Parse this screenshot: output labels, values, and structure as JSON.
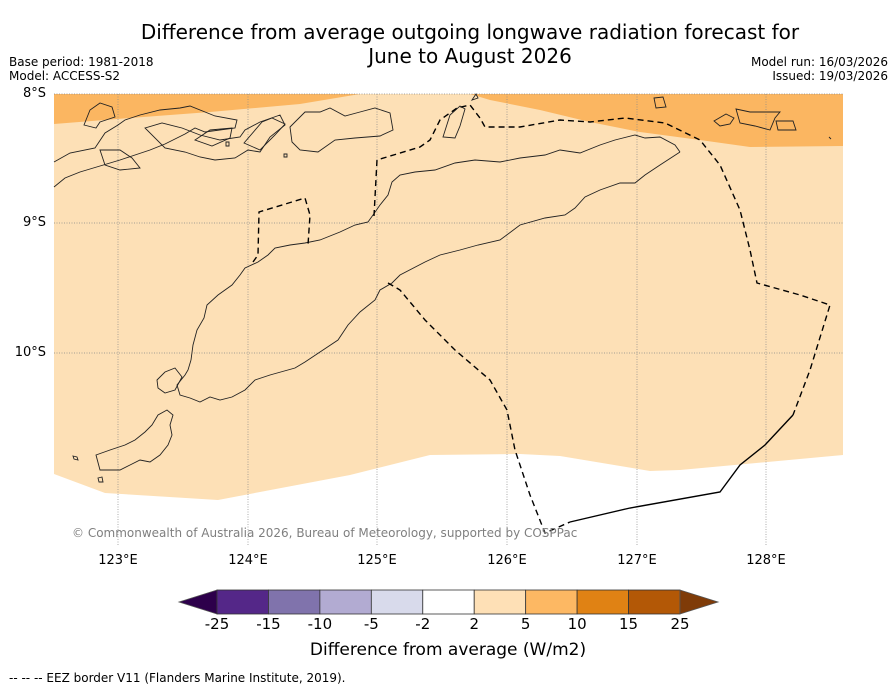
{
  "title_line1": "Difference from average outgoing longwave radiation forecast for",
  "title_line2": "June to August 2026",
  "meta": {
    "base_period": "Base period: 1981-2018",
    "model": "Model: ACCESS-S2",
    "model_run": "Model run: 16/03/2026",
    "issued": "Issued: 19/03/2026"
  },
  "map": {
    "lat_labels": [
      "8°S",
      "9°S",
      "10°S"
    ],
    "lon_labels": [
      "123°E",
      "124°E",
      "125°E",
      "126°E",
      "127°E",
      "128°E"
    ],
    "copyright": "© Commonwealth of Australia 2026, Bureau of Meteorology, supported by COSPPac",
    "region_fill_category": "2 to 5",
    "northern_band_category": "5 to 10",
    "colors": {
      "background": "#ffffff",
      "band_2_5": "#fde0b6",
      "band_5_10": "#fbb661"
    }
  },
  "colorbar": {
    "ticks": [
      "-25",
      "-15",
      "-10",
      "-5",
      "-2",
      "2",
      "5",
      "10",
      "15",
      "25"
    ],
    "segments": [
      {
        "range": "< -25",
        "color": "#2d004b"
      },
      {
        "range": "-25 to -15",
        "color": "#542788"
      },
      {
        "range": "-15 to -10",
        "color": "#8073ac"
      },
      {
        "range": "-10 to -5",
        "color": "#b2abd2"
      },
      {
        "range": "-5 to -2",
        "color": "#d8daeb"
      },
      {
        "range": "-2 to 2",
        "color": "#ffffff"
      },
      {
        "range": "2 to 5",
        "color": "#fee0b6"
      },
      {
        "range": "5 to 10",
        "color": "#fdb863"
      },
      {
        "range": "10 to 15",
        "color": "#e08214"
      },
      {
        "range": "15 to 25",
        "color": "#b35806"
      },
      {
        "range": "> 25",
        "color": "#7f3b08"
      }
    ],
    "label": "Difference from average (W/m2)"
  },
  "footnote": "--  --  -- EEZ border V11 (Flanders Marine Institute, 2019)."
}
